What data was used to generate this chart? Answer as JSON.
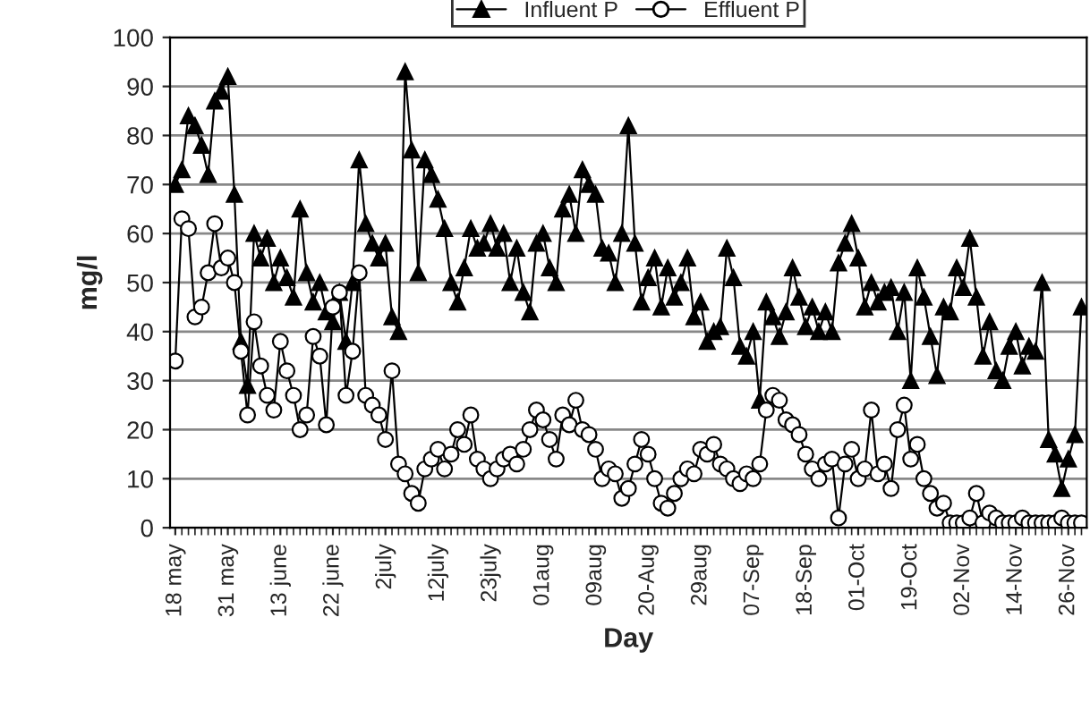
{
  "chart_data": {
    "type": "line",
    "xlabel": "Day",
    "ylabel": "mg/l",
    "categories": [
      "18 may",
      null,
      null,
      null,
      null,
      null,
      null,
      null,
      "31 may",
      null,
      null,
      null,
      null,
      null,
      null,
      null,
      "13 june",
      null,
      null,
      null,
      null,
      null,
      null,
      null,
      "22 june",
      null,
      null,
      null,
      null,
      null,
      null,
      null,
      "2july",
      null,
      null,
      null,
      null,
      null,
      null,
      null,
      "12july",
      null,
      null,
      null,
      null,
      null,
      null,
      null,
      "23july",
      null,
      null,
      null,
      null,
      null,
      null,
      null,
      "01aug",
      null,
      null,
      null,
      null,
      null,
      null,
      null,
      "09aug",
      null,
      null,
      null,
      null,
      null,
      null,
      null,
      "20-Aug",
      null,
      null,
      null,
      null,
      null,
      null,
      null,
      "29aug",
      null,
      null,
      null,
      null,
      null,
      null,
      null,
      "07-Sep",
      null,
      null,
      null,
      null,
      null,
      null,
      null,
      "18-Sep",
      null,
      null,
      null,
      null,
      null,
      null,
      null,
      "01-Oct",
      null,
      null,
      null,
      null,
      null,
      null,
      null,
      "19-Oct",
      null,
      null,
      null,
      null,
      null,
      null,
      null,
      "02-Nov",
      null,
      null,
      null,
      null,
      null,
      null,
      null,
      "14-Nov",
      null,
      null,
      null,
      null,
      null,
      null,
      null,
      "26-Nov",
      null,
      null
    ],
    "series": [
      {
        "name": "Influent P",
        "color": "#000000",
        "marker": "triangle",
        "values": [
          70,
          73,
          84,
          82,
          78,
          72,
          87,
          89,
          92,
          68,
          38,
          29,
          60,
          55,
          59,
          50,
          55,
          51,
          47,
          65,
          52,
          46,
          50,
          44,
          42,
          48,
          38,
          50,
          75,
          62,
          58,
          55,
          58,
          43,
          40,
          93,
          77,
          52,
          75,
          72,
          67,
          61,
          50,
          46,
          53,
          61,
          57,
          58,
          62,
          57,
          60,
          50,
          57,
          48,
          44,
          58,
          60,
          53,
          50,
          65,
          68,
          60,
          73,
          70,
          68,
          57,
          56,
          50,
          60,
          82,
          58,
          46,
          51,
          55,
          45,
          53,
          47,
          50,
          55,
          43,
          46,
          38,
          40,
          41,
          57,
          51,
          37,
          35,
          40,
          26,
          46,
          43,
          39,
          44,
          53,
          47,
          41,
          45,
          40,
          44,
          40,
          54,
          58,
          62,
          55,
          45,
          50,
          46,
          48,
          49,
          40,
          48,
          30,
          53,
          47,
          39,
          31,
          45,
          44,
          53,
          49,
          59,
          47,
          35,
          42,
          32,
          30,
          37,
          40,
          33,
          37,
          36,
          50,
          18,
          15,
          8,
          14,
          19,
          45
        ]
      },
      {
        "name": "Effluent P",
        "color": "#000000",
        "marker": "circle",
        "values": [
          34,
          63,
          61,
          43,
          45,
          52,
          62,
          53,
          55,
          50,
          36,
          23,
          42,
          33,
          27,
          24,
          38,
          32,
          27,
          20,
          23,
          39,
          35,
          21,
          45,
          48,
          27,
          36,
          52,
          27,
          25,
          23,
          18,
          32,
          13,
          11,
          7,
          5,
          12,
          14,
          16,
          12,
          15,
          20,
          17,
          23,
          14,
          12,
          10,
          12,
          14,
          15,
          13,
          16,
          20,
          24,
          22,
          18,
          14,
          23,
          21,
          26,
          20,
          19,
          16,
          10,
          12,
          11,
          6,
          8,
          13,
          18,
          15,
          10,
          5,
          4,
          7,
          10,
          12,
          11,
          16,
          15,
          17,
          13,
          12,
          10,
          9,
          11,
          10,
          13,
          24,
          27,
          26,
          22,
          21,
          19,
          15,
          12,
          10,
          13,
          14,
          2,
          13,
          16,
          10,
          12,
          24,
          11,
          13,
          8,
          20,
          25,
          14,
          17,
          10,
          7,
          4,
          5,
          1,
          1,
          1,
          2,
          7,
          1,
          3,
          2,
          1,
          1,
          1,
          2,
          1,
          1,
          1,
          1,
          1,
          2,
          1,
          1,
          1
        ]
      }
    ],
    "ylim": [
      0,
      100
    ],
    "yticks": [
      0,
      10,
      20,
      30,
      40,
      50,
      60,
      70,
      80,
      90,
      100
    ],
    "grid": "y",
    "legend": "top",
    "line_style": "solid"
  }
}
